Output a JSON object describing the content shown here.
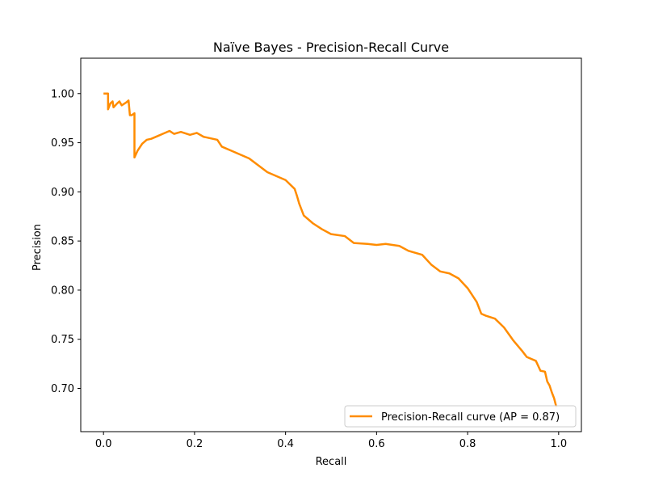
{
  "chart_data": {
    "type": "line",
    "title": "Naïve Bayes - Precision-Recall Curve",
    "xlabel": "Recall",
    "ylabel": "Precision",
    "xlim": [
      -0.05,
      1.05
    ],
    "ylim": [
      0.656,
      1.036
    ],
    "x_ticks": [
      0.0,
      0.2,
      0.4,
      0.6,
      0.8,
      1.0
    ],
    "x_tick_labels": [
      "0.0",
      "0.2",
      "0.4",
      "0.6",
      "0.8",
      "1.0"
    ],
    "y_ticks": [
      0.7,
      0.75,
      0.8,
      0.85,
      0.9,
      0.95,
      1.0
    ],
    "y_tick_labels": [
      "0.70",
      "0.75",
      "0.80",
      "0.85",
      "0.90",
      "0.95",
      "1.00"
    ],
    "grid": false,
    "legend_position": "lower-right",
    "series": [
      {
        "name": "Precision-Recall curve (AP = 0.87)",
        "color": "#ff8c00",
        "points": [
          [
            0.0,
            1.0
          ],
          [
            0.01,
            1.0
          ],
          [
            0.01,
            0.984
          ],
          [
            0.015,
            0.99
          ],
          [
            0.02,
            0.992
          ],
          [
            0.022,
            0.986
          ],
          [
            0.03,
            0.99
          ],
          [
            0.035,
            0.992
          ],
          [
            0.04,
            0.988
          ],
          [
            0.05,
            0.991
          ],
          [
            0.055,
            0.993
          ],
          [
            0.058,
            0.978
          ],
          [
            0.062,
            0.978
          ],
          [
            0.068,
            0.98
          ],
          [
            0.068,
            0.935
          ],
          [
            0.075,
            0.942
          ],
          [
            0.085,
            0.949
          ],
          [
            0.095,
            0.953
          ],
          [
            0.105,
            0.954
          ],
          [
            0.12,
            0.957
          ],
          [
            0.13,
            0.959
          ],
          [
            0.145,
            0.962
          ],
          [
            0.155,
            0.959
          ],
          [
            0.17,
            0.961
          ],
          [
            0.19,
            0.958
          ],
          [
            0.205,
            0.96
          ],
          [
            0.22,
            0.956
          ],
          [
            0.25,
            0.953
          ],
          [
            0.26,
            0.946
          ],
          [
            0.28,
            0.942
          ],
          [
            0.3,
            0.938
          ],
          [
            0.32,
            0.934
          ],
          [
            0.34,
            0.927
          ],
          [
            0.36,
            0.92
          ],
          [
            0.38,
            0.916
          ],
          [
            0.4,
            0.912
          ],
          [
            0.42,
            0.903
          ],
          [
            0.425,
            0.896
          ],
          [
            0.43,
            0.888
          ],
          [
            0.44,
            0.876
          ],
          [
            0.46,
            0.868
          ],
          [
            0.48,
            0.862
          ],
          [
            0.5,
            0.857
          ],
          [
            0.53,
            0.855
          ],
          [
            0.55,
            0.848
          ],
          [
            0.58,
            0.847
          ],
          [
            0.6,
            0.846
          ],
          [
            0.62,
            0.847
          ],
          [
            0.65,
            0.845
          ],
          [
            0.67,
            0.84
          ],
          [
            0.7,
            0.836
          ],
          [
            0.72,
            0.826
          ],
          [
            0.74,
            0.819
          ],
          [
            0.76,
            0.817
          ],
          [
            0.78,
            0.812
          ],
          [
            0.8,
            0.802
          ],
          [
            0.82,
            0.788
          ],
          [
            0.83,
            0.776
          ],
          [
            0.84,
            0.774
          ],
          [
            0.86,
            0.771
          ],
          [
            0.88,
            0.762
          ],
          [
            0.9,
            0.749
          ],
          [
            0.92,
            0.738
          ],
          [
            0.93,
            0.732
          ],
          [
            0.95,
            0.728
          ],
          [
            0.96,
            0.718
          ],
          [
            0.97,
            0.717
          ],
          [
            0.975,
            0.707
          ],
          [
            0.98,
            0.703
          ],
          [
            0.985,
            0.696
          ],
          [
            0.99,
            0.69
          ],
          [
            0.995,
            0.681
          ]
        ]
      }
    ]
  }
}
